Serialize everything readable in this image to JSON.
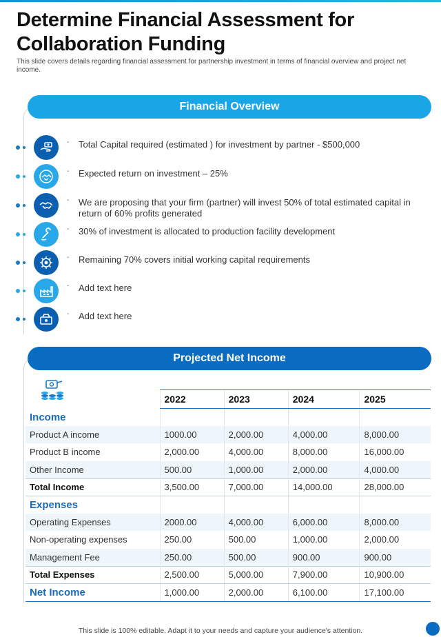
{
  "page": {
    "title": "Determine Financial Assessment for Collaboration Funding",
    "subtitle": "This slide covers details regarding financial assessment for partnership investment in terms of financial overview and project net income."
  },
  "overview": {
    "heading": "Financial Overview",
    "items": [
      {
        "icon": "money-hand-icon",
        "text": "Total Capital required (estimated ) for investment by partner  - $500,000"
      },
      {
        "icon": "handshake-circle-icon",
        "text": "Expected return on investment – 25%"
      },
      {
        "icon": "handshake-icon",
        "text": "We are proposing that your firm (partner) will invest 50% of total estimated capital in return of 60% profits generated"
      },
      {
        "icon": "wrench-hand-icon",
        "text": "30% of investment is allocated to production facility development"
      },
      {
        "icon": "gear-coin-icon",
        "text": "Remaining 70% covers initial working capital requirements"
      },
      {
        "icon": "factory-icon",
        "text": "Add text here"
      },
      {
        "icon": "money-box-icon",
        "text": "Add text here"
      }
    ]
  },
  "net_income": {
    "heading": "Projected Net Income",
    "years": [
      "2022",
      "2023",
      "2024",
      "2025"
    ],
    "income_label": "Income",
    "income_rows": [
      {
        "label": "Product A income",
        "values": [
          "1000.00",
          "2,000.00",
          "4,000.00",
          "8,000.00"
        ]
      },
      {
        "label": "Product B income",
        "values": [
          "2,000.00",
          "4,000.00",
          "8,000.00",
          "16,000.00"
        ]
      },
      {
        "label": "Other Income",
        "values": [
          "500.00",
          "1,000.00",
          "2,000.00",
          "4,000.00"
        ]
      }
    ],
    "total_income": {
      "label": "Total Income",
      "values": [
        "3,500.00",
        "7,000.00",
        "14,000.00",
        "28,000.00"
      ]
    },
    "expenses_label": "Expenses",
    "expense_rows": [
      {
        "label": "Operating Expenses",
        "values": [
          "2000.00",
          "4,000.00",
          "6,000.00",
          "8,000.00"
        ]
      },
      {
        "label": "Non-operating expenses",
        "values": [
          "250.00",
          "500.00",
          "1,000.00",
          "2,000.00"
        ]
      },
      {
        "label": "Management Fee",
        "values": [
          "250.00",
          "500.00",
          "900.00",
          "900.00"
        ]
      }
    ],
    "total_expenses": {
      "label": "Total Expenses",
      "values": [
        "2,500.00",
        "5,000.00",
        "7,900.00",
        "10,900.00"
      ]
    },
    "net": {
      "label": "Net Income",
      "values": [
        "1,000.00",
        "2,000.00",
        "6,100.00",
        "17,100.00"
      ]
    }
  },
  "footer": {
    "text": "This slide is 100% editable. Adapt it to your needs and capture your audience's attention."
  },
  "colors": {
    "accent": "#1aa6e6",
    "dark_accent": "#0a6cc0",
    "section_text": "#1a6cb8"
  }
}
